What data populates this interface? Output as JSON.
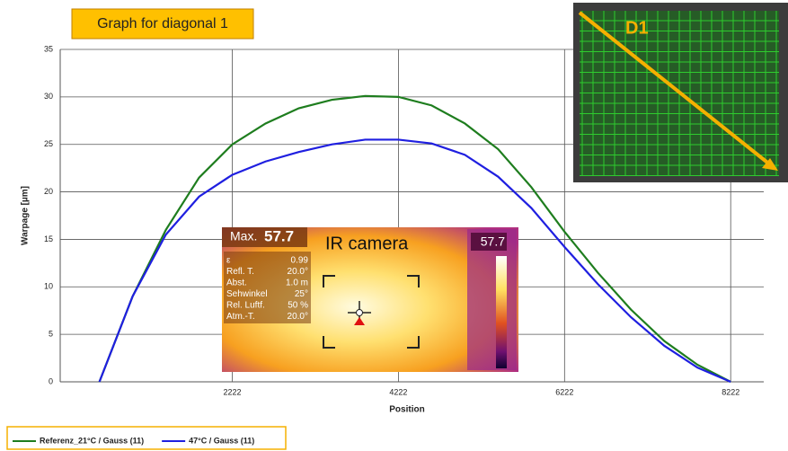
{
  "chart_data": {
    "type": "line",
    "title": "Graph for diagonal 1",
    "x_label": "Position",
    "y_label": "Warpage [µm]",
    "x": [
      622,
      1022,
      1422,
      1822,
      2222,
      2622,
      3022,
      3422,
      3822,
      4222,
      4622,
      5022,
      5422,
      5822,
      6222,
      6622,
      7022,
      7422,
      7822,
      8222
    ],
    "series": [
      {
        "name": "Referenz_21°C / Gauss (11)",
        "color": "#1e7d1e",
        "values": [
          0,
          9,
          16,
          21.5,
          25,
          27.2,
          28.8,
          29.7,
          30.1,
          30,
          29.1,
          27.2,
          24.5,
          20.5,
          15.8,
          11.5,
          7.6,
          4.3,
          1.8,
          0
        ]
      },
      {
        "name": "47°C / Gauss (11)",
        "color": "#1f1fe0",
        "values": [
          0,
          9,
          15.5,
          19.5,
          21.8,
          23.2,
          24.2,
          25,
          25.5,
          25.5,
          25.1,
          23.9,
          21.6,
          18.3,
          14.2,
          10.3,
          6.8,
          3.8,
          1.5,
          0
        ]
      }
    ],
    "xlim": [
      150,
      8620
    ],
    "xticks": [
      2222,
      4222,
      6222,
      8222
    ],
    "ylim": [
      0,
      35
    ],
    "yticks": [
      0,
      5,
      10,
      15,
      20,
      25,
      30,
      35
    ],
    "grid": true,
    "ir_camera": {
      "max_label": "Max.",
      "max_value": "57.7",
      "caption": "IR camera",
      "scale_max": "57.7",
      "params": [
        [
          "ε",
          "0.99"
        ],
        [
          "Refl. T.",
          "20.0°"
        ],
        [
          "Abst.",
          "1.0 m"
        ],
        [
          "Sehwinkel",
          "25°"
        ],
        [
          "Rel. Luftf.",
          "50 %"
        ],
        [
          "Atm.-T.",
          "20.0°"
        ]
      ]
    },
    "diagonal_label": "D1"
  }
}
